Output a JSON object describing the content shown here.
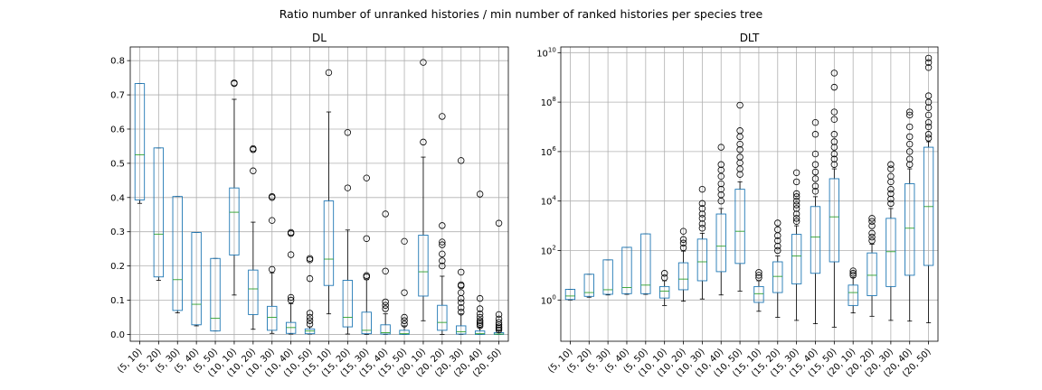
{
  "figure_title": "Ratio number of unranked histories / min number of ranked histories per species tree",
  "colors": {
    "box": "#1f77b4",
    "median": "#2ca02c",
    "grid": "#b0b0b0",
    "flier": "#000000",
    "whisker": "#000000"
  },
  "chart_data": [
    {
      "type": "box",
      "title": "DL",
      "xlabel": "",
      "ylabel": "",
      "grid": true,
      "yscale": "linear",
      "ylim": [
        -0.02,
        0.84
      ],
      "yticks": [
        0.0,
        0.1,
        0.2,
        0.3,
        0.4,
        0.5,
        0.6,
        0.7,
        0.8
      ],
      "ytick_labels": [
        "0.0",
        "0.1",
        "0.2",
        "0.3",
        "0.4",
        "0.5",
        "0.6",
        "0.7",
        "0.8"
      ],
      "categories": [
        "(5, 10)",
        "(5, 20)",
        "(5, 30)",
        "(5, 40)",
        "(5, 50)",
        "(10, 10)",
        "(10, 20)",
        "(10, 30)",
        "(10, 40)",
        "(10, 50)",
        "(15, 10)",
        "(15, 20)",
        "(15, 30)",
        "(15, 40)",
        "(15, 50)",
        "(20, 10)",
        "(20, 20)",
        "(20, 30)",
        "(20, 40)",
        "(20, 50)"
      ],
      "boxes": [
        {
          "whislo": 0.383,
          "q1": 0.393,
          "med": 0.525,
          "q3": 0.733,
          "whishi": 0.733,
          "fliers": []
        },
        {
          "whislo": 0.158,
          "q1": 0.168,
          "med": 0.293,
          "q3": 0.545,
          "whishi": 0.545,
          "fliers": []
        },
        {
          "whislo": 0.063,
          "q1": 0.07,
          "med": 0.16,
          "q3": 0.403,
          "whishi": 0.403,
          "fliers": []
        },
        {
          "whislo": 0.025,
          "q1": 0.028,
          "med": 0.088,
          "q3": 0.298,
          "whishi": 0.298,
          "fliers": []
        },
        {
          "whislo": 0.01,
          "q1": 0.01,
          "med": 0.047,
          "q3": 0.222,
          "whishi": 0.222,
          "fliers": []
        },
        {
          "whislo": 0.115,
          "q1": 0.232,
          "med": 0.357,
          "q3": 0.428,
          "whishi": 0.687,
          "fliers": [
            0.733,
            0.735
          ]
        },
        {
          "whislo": 0.015,
          "q1": 0.058,
          "med": 0.133,
          "q3": 0.188,
          "whishi": 0.328,
          "fliers": [
            0.478,
            0.54,
            0.543
          ]
        },
        {
          "whislo": 0.003,
          "q1": 0.012,
          "med": 0.05,
          "q3": 0.082,
          "whishi": 0.18,
          "fliers": [
            0.19,
            0.333,
            0.4,
            0.403
          ]
        },
        {
          "whislo": 0.001,
          "q1": 0.003,
          "med": 0.02,
          "q3": 0.035,
          "whishi": 0.09,
          "fliers": [
            0.1,
            0.108,
            0.233,
            0.295,
            0.298
          ]
        },
        {
          "whislo": 0.001,
          "q1": 0.002,
          "med": 0.01,
          "q3": 0.016,
          "whishi": 0.022,
          "fliers": [
            0.03,
            0.04,
            0.05,
            0.062,
            0.163,
            0.218,
            0.222
          ]
        },
        {
          "whislo": 0.06,
          "q1": 0.143,
          "med": 0.22,
          "q3": 0.39,
          "whishi": 0.65,
          "fliers": [
            0.765
          ]
        },
        {
          "whislo": 0.001,
          "q1": 0.022,
          "med": 0.05,
          "q3": 0.158,
          "whishi": 0.305,
          "fliers": [
            0.428,
            0.59
          ]
        },
        {
          "whislo": 0.0,
          "q1": 0.002,
          "med": 0.012,
          "q3": 0.065,
          "whishi": 0.16,
          "fliers": [
            0.168,
            0.172,
            0.28,
            0.457
          ]
        },
        {
          "whislo": 0.0,
          "q1": 0.001,
          "med": 0.005,
          "q3": 0.028,
          "whishi": 0.06,
          "fliers": [
            0.075,
            0.085,
            0.095,
            0.185,
            0.352
          ]
        },
        {
          "whislo": 0.0,
          "q1": 0.0,
          "med": 0.002,
          "q3": 0.012,
          "whishi": 0.025,
          "fliers": [
            0.03,
            0.04,
            0.05,
            0.122,
            0.272
          ]
        },
        {
          "whislo": 0.04,
          "q1": 0.112,
          "med": 0.183,
          "q3": 0.29,
          "whishi": 0.518,
          "fliers": [
            0.562,
            0.795
          ]
        },
        {
          "whislo": 0.0,
          "q1": 0.012,
          "med": 0.035,
          "q3": 0.085,
          "whishi": 0.17,
          "fliers": [
            0.2,
            0.215,
            0.235,
            0.262,
            0.27,
            0.318,
            0.637
          ]
        },
        {
          "whislo": 0.0,
          "q1": 0.001,
          "med": 0.008,
          "q3": 0.025,
          "whishi": 0.06,
          "fliers": [
            0.065,
            0.078,
            0.093,
            0.105,
            0.122,
            0.142,
            0.145,
            0.182,
            0.508
          ]
        },
        {
          "whislo": 0.0,
          "q1": 0.0,
          "med": 0.002,
          "q3": 0.01,
          "whishi": 0.02,
          "fliers": [
            0.025,
            0.03,
            0.035,
            0.04,
            0.05,
            0.06,
            0.075,
            0.105,
            0.41
          ]
        },
        {
          "whislo": 0.0,
          "q1": 0.0,
          "med": 0.001,
          "q3": 0.005,
          "whishi": 0.01,
          "fliers": [
            0.013,
            0.018,
            0.022,
            0.028,
            0.035,
            0.045,
            0.058,
            0.325
          ]
        }
      ]
    },
    {
      "type": "box",
      "title": "DLT",
      "xlabel": "",
      "ylabel": "",
      "grid": true,
      "yscale": "log",
      "ylim": [
        0.0215,
        17000000000
      ],
      "yticks": [
        1,
        100,
        10000,
        1000000,
        100000000,
        10000000000
      ],
      "ytick_labels": [
        {
          "base": "10",
          "exp": "0"
        },
        {
          "base": "10",
          "exp": "2"
        },
        {
          "base": "10",
          "exp": "4"
        },
        {
          "base": "10",
          "exp": "6"
        },
        {
          "base": "10",
          "exp": "8"
        },
        {
          "base": "10",
          "exp": "10"
        }
      ],
      "categories": [
        "(5, 10)",
        "(5, 20)",
        "(5, 30)",
        "(5, 40)",
        "(5, 50)",
        "(10, 10)",
        "(10, 20)",
        "(10, 30)",
        "(10, 40)",
        "(10, 50)",
        "(15, 10)",
        "(15, 20)",
        "(15, 30)",
        "(15, 40)",
        "(15, 50)",
        "(20, 10)",
        "(20, 20)",
        "(20, 30)",
        "(20, 40)",
        "(20, 50)"
      ],
      "boxes": [
        {
          "whislo": 1.0,
          "q1": 1.05,
          "med": 1.45,
          "q3": 2.7,
          "whishi": 2.7,
          "fliers": []
        },
        {
          "whislo": 1.3,
          "q1": 1.4,
          "med": 2.0,
          "q3": 11.0,
          "whishi": 11.0,
          "fliers": []
        },
        {
          "whislo": 1.6,
          "q1": 1.7,
          "med": 2.6,
          "q3": 42.0,
          "whishi": 42.0,
          "fliers": []
        },
        {
          "whislo": 1.7,
          "q1": 1.8,
          "med": 3.2,
          "q3": 135.0,
          "whishi": 135.0,
          "fliers": []
        },
        {
          "whislo": 1.7,
          "q1": 1.8,
          "med": 4.0,
          "q3": 470.0,
          "whishi": 470.0,
          "fliers": []
        },
        {
          "whislo": 0.6,
          "q1": 1.2,
          "med": 2.3,
          "q3": 3.5,
          "whishi": 6.0,
          "fliers": [
            8.0,
            12.0
          ]
        },
        {
          "whislo": 0.9,
          "q1": 2.6,
          "med": 7.0,
          "q3": 32.0,
          "whishi": 95.0,
          "fliers": [
            130,
            200,
            280,
            600
          ]
        },
        {
          "whislo": 1.1,
          "q1": 6.0,
          "med": 35.0,
          "q3": 290.0,
          "whishi": 500.0,
          "fliers": [
            800,
            1200,
            2000,
            3000,
            5000,
            8000,
            30000
          ]
        },
        {
          "whislo": 1.6,
          "q1": 14.0,
          "med": 150.0,
          "q3": 3000.0,
          "whishi": 5000.0,
          "fliers": [
            10000,
            18000,
            30000,
            50000,
            100000,
            180000,
            300000,
            1500000
          ]
        },
        {
          "whislo": 2.3,
          "q1": 30.0,
          "med": 600.0,
          "q3": 30000.0,
          "whishi": 60000.0,
          "fliers": [
            120000,
            200000,
            350000,
            600000,
            1200000,
            2000000,
            4000000,
            7000000,
            75000000
          ]
        },
        {
          "whislo": 0.35,
          "q1": 0.8,
          "med": 1.8,
          "q3": 3.5,
          "whishi": 6.0,
          "fliers": [
            8,
            10,
            13
          ]
        },
        {
          "whislo": 0.2,
          "q1": 2.0,
          "med": 9.0,
          "q3": 35.0,
          "whishi": 60.0,
          "fliers": [
            100,
            150,
            250,
            400,
            700,
            1300
          ]
        },
        {
          "whislo": 0.15,
          "q1": 4.5,
          "med": 60.0,
          "q3": 450.0,
          "whishi": 1000.0,
          "fliers": [
            1500,
            2000,
            3000,
            5000,
            7000,
            10000,
            15000,
            20000,
            60000,
            140000
          ]
        },
        {
          "whislo": 0.11,
          "q1": 12.0,
          "med": 350.0,
          "q3": 6000.0,
          "whishi": 15000.0,
          "fliers": [
            25000,
            40000,
            80000,
            150000,
            300000,
            800000,
            5000000,
            15000000
          ]
        },
        {
          "whislo": 0.08,
          "q1": 35.0,
          "med": 2300.0,
          "q3": 80000.0,
          "whishi": 200000.0,
          "fliers": [
            300000,
            500000,
            800000,
            1500000,
            2500000,
            5000000,
            20000000,
            40000000,
            400000000,
            1500000000
          ]
        },
        {
          "whislo": 0.3,
          "q1": 0.6,
          "med": 2.0,
          "q3": 4.0,
          "whishi": 8.0,
          "fliers": [
            10,
            12,
            15
          ]
        },
        {
          "whislo": 0.22,
          "q1": 1.5,
          "med": 10.0,
          "q3": 80.0,
          "whishi": 180.0,
          "fliers": [
            250,
            350,
            500,
            1000,
            1500,
            2000
          ]
        },
        {
          "whislo": 0.15,
          "q1": 3.5,
          "med": 90.0,
          "q3": 2000.0,
          "whishi": 5000.0,
          "fliers": [
            8000,
            12000,
            20000,
            30000,
            60000,
            100000,
            200000,
            300000
          ]
        },
        {
          "whislo": 0.14,
          "q1": 10.0,
          "med": 800.0,
          "q3": 50000.0,
          "whishi": 200000.0,
          "fliers": [
            300000,
            500000,
            1000000,
            2000000,
            4000000,
            10000000,
            30000000,
            40000000
          ]
        },
        {
          "whislo": 0.12,
          "q1": 25.0,
          "med": 6000.0,
          "q3": 1500000.0,
          "whishi": 2500000.0,
          "fliers": [
            3500000,
            5000000,
            10000000,
            15000000,
            30000000,
            60000000,
            100000000,
            180000000,
            2500000000,
            4000000000,
            6000000000
          ]
        }
      ]
    }
  ]
}
